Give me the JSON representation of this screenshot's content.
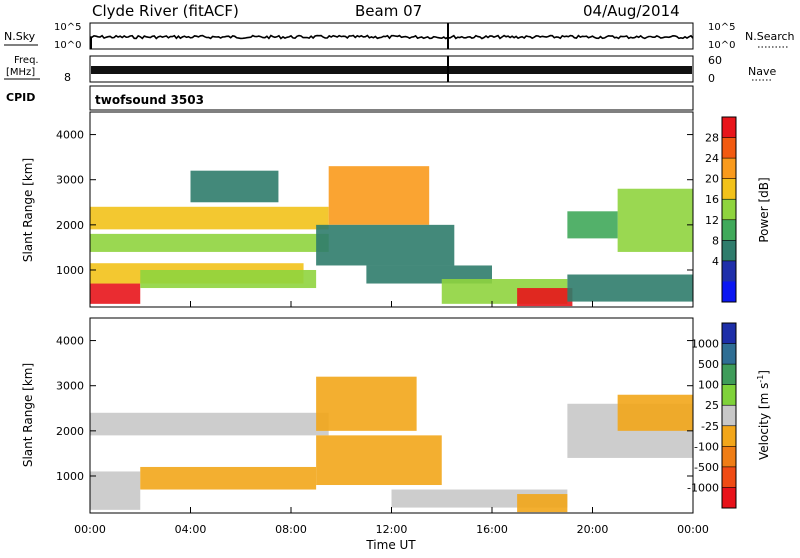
{
  "header": {
    "station": "Clyde River (fitACF)",
    "beam": "Beam 07",
    "date": "04/Aug/2014"
  },
  "strips": {
    "nsky_label": "N.Sky",
    "nsky_ticks": [
      "10^5",
      "10^0"
    ],
    "nsearch_label": "N.Search",
    "nsearch_ticks": [
      "10^5",
      "10^0"
    ],
    "freq_label": "Freq.",
    "freq_unit": "[MHz]",
    "freq_ticks": [
      "8"
    ],
    "nave_label": "Nave",
    "nave_ticks": [
      "60",
      "0"
    ],
    "cpid_label": "CPID",
    "cpid_value": "twofsound 3503"
  },
  "panels": {
    "power": {
      "ylabel": "Slant Range [km]",
      "colorbar_label": "Power [dB]",
      "colorbar_ticks": [
        "28",
        "24",
        "20",
        "16",
        "12",
        "8",
        "4"
      ],
      "colorbar_colors": [
        "#e8151b",
        "#f25a10",
        "#f99a1c",
        "#f2c21a",
        "#8fd43e",
        "#40a95a",
        "#2f7c6c",
        "#1f2faa",
        "#0b17f2"
      ]
    },
    "velocity": {
      "ylabel": "Slant Range [km]",
      "colorbar_label": "Velocity [m s",
      "colorbar_label_sup": "-1",
      "colorbar_label_end": "]",
      "colorbar_ticks": [
        "1000",
        "500",
        "100",
        "25",
        "-25",
        "-100",
        "-500",
        "-1000"
      ],
      "colorbar_colors": [
        "#1d2ea8",
        "#2f6e94",
        "#3f9c5a",
        "#7fd23a",
        "#c8c8c8",
        "#f2a61a",
        "#ef7d15",
        "#f04b14",
        "#e8121a"
      ]
    }
  },
  "chart_data": [
    {
      "type": "heatmap",
      "title": "Clyde River (fitACF) Beam 07 04/Aug/2014",
      "xlabel": "Time UT",
      "ylabel": "Slant Range [km]",
      "x_ticks": [
        "00:00",
        "04:00",
        "08:00",
        "12:00",
        "16:00",
        "20:00",
        "00:00"
      ],
      "xlim_hours": [
        0,
        24
      ],
      "y_ticks": [
        1000,
        2000,
        3000,
        4000
      ],
      "ylim": [
        180,
        4500
      ],
      "colorbar": {
        "label": "Power [dB]",
        "ticks": [
          28,
          24,
          20,
          16,
          12,
          8,
          4
        ],
        "range": [
          0,
          30
        ]
      },
      "regions": [
        {
          "t": [
            0.0,
            2.0
          ],
          "r": [
            250,
            700
          ],
          "v": 29
        },
        {
          "t": [
            0.0,
            8.5
          ],
          "r": [
            700,
            1150
          ],
          "v": 18
        },
        {
          "t": [
            2.0,
            9.0
          ],
          "r": [
            600,
            1000
          ],
          "v": 14
        },
        {
          "t": [
            0.0,
            9.5
          ],
          "r": [
            1400,
            1800
          ],
          "v": 15
        },
        {
          "t": [
            0.0,
            9.5
          ],
          "r": [
            1900,
            2400
          ],
          "v": 17
        },
        {
          "t": [
            4.0,
            7.5
          ],
          "r": [
            2500,
            3200
          ],
          "v": 9
        },
        {
          "t": [
            9.5,
            13.5
          ],
          "r": [
            2000,
            3300
          ],
          "v": 22
        },
        {
          "t": [
            9.0,
            14.5
          ],
          "r": [
            1100,
            2000
          ],
          "v": 10
        },
        {
          "t": [
            11.0,
            16.0
          ],
          "r": [
            700,
            1100
          ],
          "v": 8
        },
        {
          "t": [
            14.0,
            19.0
          ],
          "r": [
            250,
            800
          ],
          "v": 16
        },
        {
          "t": [
            17.0,
            19.2
          ],
          "r": [
            200,
            600
          ],
          "v": 28
        },
        {
          "t": [
            19.0,
            24.0
          ],
          "r": [
            300,
            900
          ],
          "v": 10
        },
        {
          "t": [
            21.0,
            24.0
          ],
          "r": [
            1400,
            2800
          ],
          "v": 14
        },
        {
          "t": [
            19.0,
            21.0
          ],
          "r": [
            1700,
            2300
          ],
          "v": 12
        }
      ]
    },
    {
      "type": "heatmap",
      "title": "Clyde River (fitACF) Beam 07 04/Aug/2014",
      "xlabel": "Time UT",
      "ylabel": "Slant Range [km]",
      "x_ticks": [
        "00:00",
        "04:00",
        "08:00",
        "12:00",
        "16:00",
        "20:00",
        "00:00"
      ],
      "xlim_hours": [
        0,
        24
      ],
      "y_ticks": [
        1000,
        2000,
        3000,
        4000
      ],
      "ylim": [
        180,
        4500
      ],
      "colorbar": {
        "label": "Velocity [m s-1]",
        "ticks": [
          1000,
          500,
          100,
          25,
          -25,
          -100,
          -500,
          -1000
        ],
        "range": [
          -1200,
          1200
        ]
      },
      "regions": [
        {
          "t": [
            0.0,
            2.0
          ],
          "r": [
            250,
            1100
          ],
          "v": 0
        },
        {
          "t": [
            0.0,
            9.5
          ],
          "r": [
            1900,
            2400
          ],
          "v": 0
        },
        {
          "t": [
            2.0,
            9.0
          ],
          "r": [
            700,
            1200
          ],
          "v": -200
        },
        {
          "t": [
            9.0,
            13.0
          ],
          "r": [
            2000,
            3200
          ],
          "v": -250
        },
        {
          "t": [
            9.0,
            14.0
          ],
          "r": [
            800,
            1900
          ],
          "v": -150
        },
        {
          "t": [
            12.0,
            19.0
          ],
          "r": [
            300,
            700
          ],
          "v": -120
        },
        {
          "t": [
            17.0,
            19.0
          ],
          "r": [
            200,
            600
          ],
          "v": -300
        },
        {
          "t": [
            19.0,
            24.0
          ],
          "r": [
            1400,
            2600
          ],
          "v": -40
        },
        {
          "t": [
            21.0,
            24.0
          ],
          "r": [
            2000,
            2800
          ],
          "v": -200
        }
      ]
    }
  ]
}
